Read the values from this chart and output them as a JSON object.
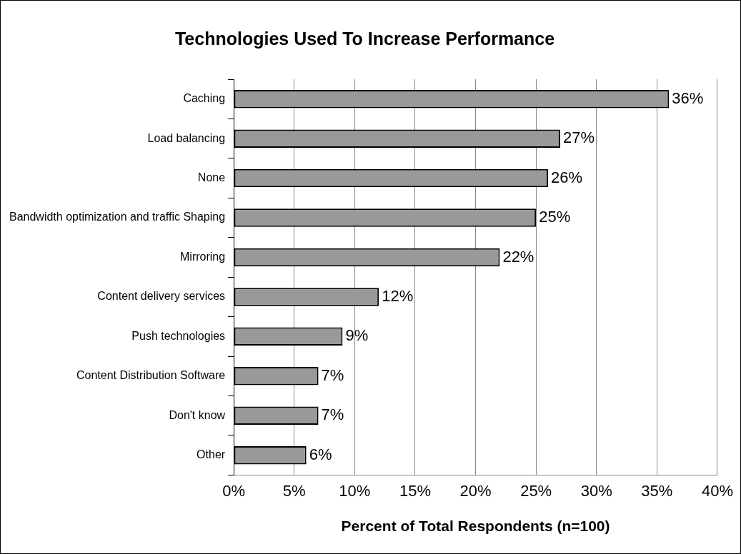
{
  "chart_data": {
    "type": "bar",
    "orientation": "horizontal",
    "title": "Technologies Used To Increase Performance",
    "xlabel": "Percent of Total Respondents (n=100)",
    "categories": [
      "Caching",
      "Load balancing",
      "None",
      "Bandwidth optimization and traffic Shaping",
      "Mirroring",
      "Content delivery services",
      "Push technologies",
      "Content Distribution Software",
      "Don't know",
      "Other"
    ],
    "values": [
      36,
      27,
      26,
      25,
      22,
      12,
      9,
      7,
      7,
      6
    ],
    "value_labels": [
      "36%",
      "27%",
      "26%",
      "25%",
      "22%",
      "12%",
      "9%",
      "7%",
      "7%",
      "6%"
    ],
    "color": "#999999",
    "xlim": [
      0,
      40
    ],
    "xticks": [
      {
        "value": 0,
        "label": "0%"
      },
      {
        "value": 5,
        "label": "5%"
      },
      {
        "value": 10,
        "label": "10%"
      },
      {
        "value": 15,
        "label": "15%"
      },
      {
        "value": 20,
        "label": "20%"
      },
      {
        "value": 25,
        "label": "25%"
      },
      {
        "value": 30,
        "label": "30%"
      },
      {
        "value": 35,
        "label": "35%"
      },
      {
        "value": 40,
        "label": "40%"
      }
    ],
    "grid": "x",
    "legend": false
  }
}
